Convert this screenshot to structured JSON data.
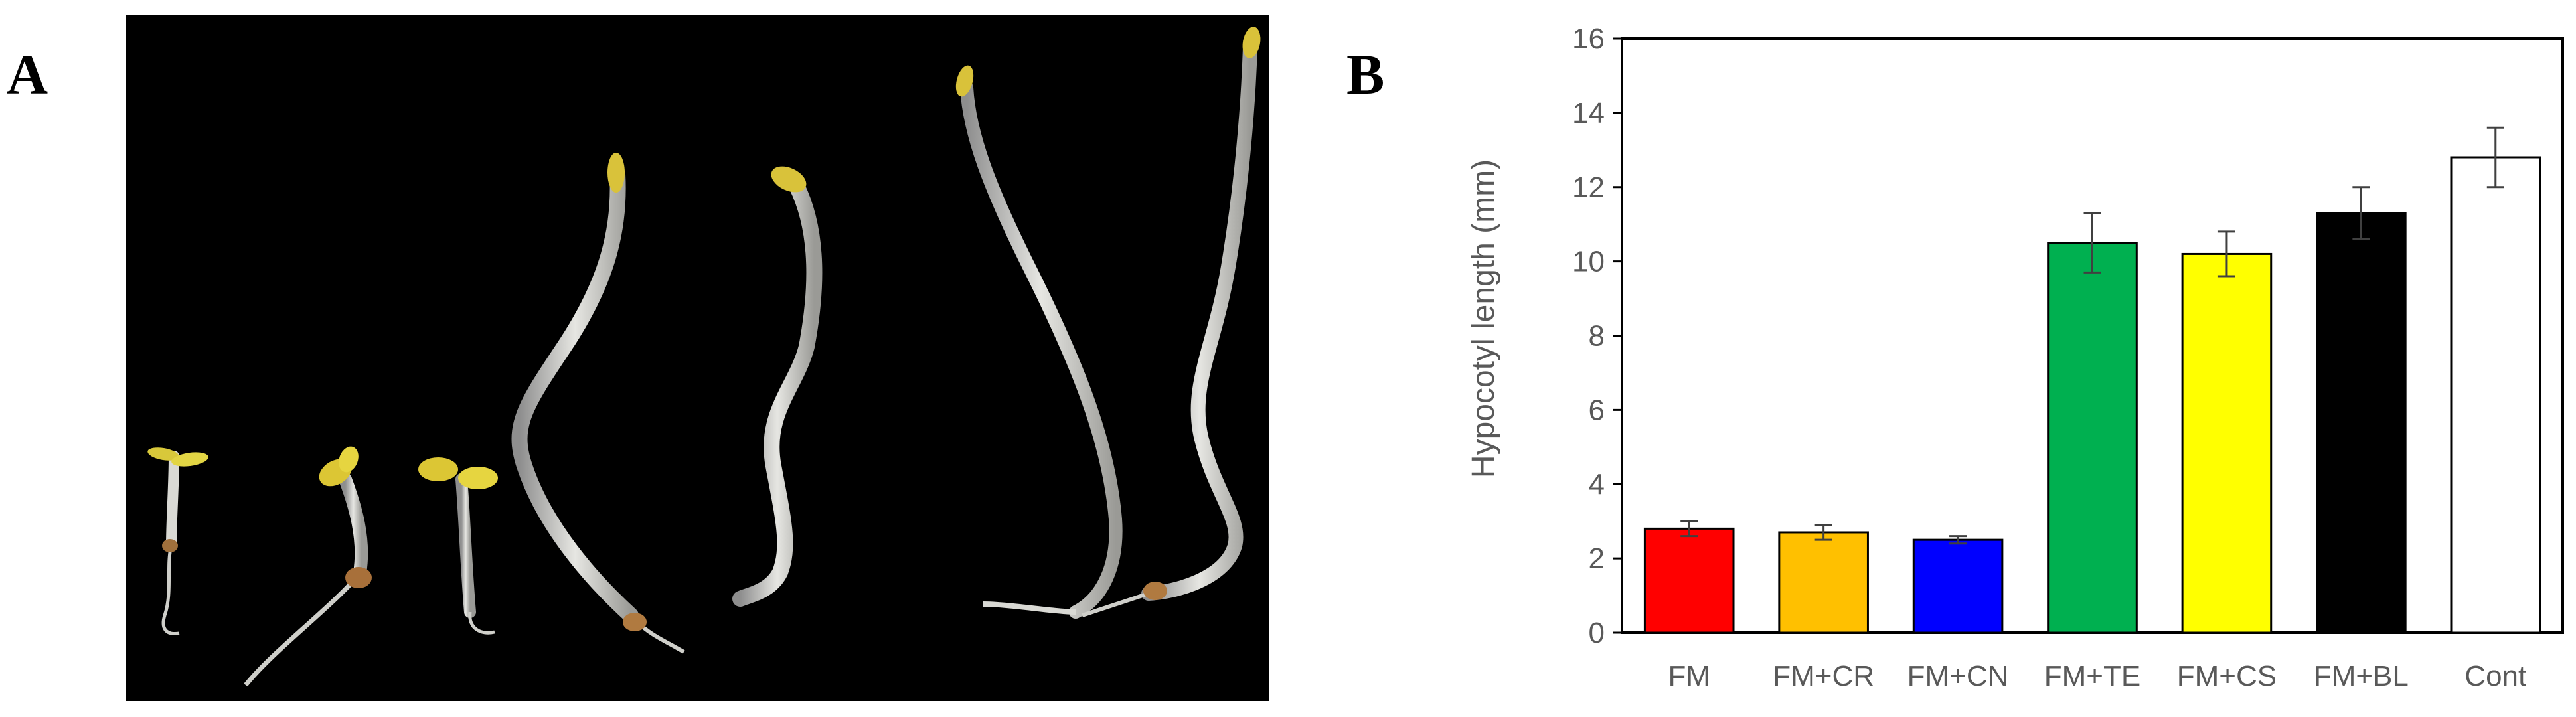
{
  "figure": {
    "panel_a_label": "A",
    "panel_b_label": "B"
  },
  "photo": {
    "background": "#000000",
    "seedlings": [
      {
        "type": "seedling",
        "cotyledon_color": "#d8c83a"
      },
      {
        "type": "seedling",
        "cotyledon_color": "#d8c83a"
      },
      {
        "type": "seedling",
        "cotyledon_color": "#d8c83a"
      },
      {
        "type": "seedling",
        "cotyledon_color": "#d8c83a"
      },
      {
        "type": "seedling",
        "cotyledon_color": "#d8c83a"
      },
      {
        "type": "seedling",
        "cotyledon_color": "#d8c83a"
      },
      {
        "type": "seedling",
        "cotyledon_color": "#d8c83a"
      }
    ]
  },
  "chart_data": {
    "type": "bar",
    "categories": [
      "FM",
      "FM+CR",
      "FM+CN",
      "FM+TE",
      "FM+CS",
      "FM+BL",
      "Cont"
    ],
    "values": [
      2.8,
      2.7,
      2.5,
      10.5,
      10.2,
      11.3,
      12.8
    ],
    "errors": [
      0.2,
      0.2,
      0.1,
      0.8,
      0.6,
      0.7,
      0.8
    ],
    "colors": [
      "#ff0000",
      "#ffc000",
      "#0000ff",
      "#00b050",
      "#ffff00",
      "#000000",
      "#ffffff"
    ],
    "ylabel": "Hypocotyl length (mm)",
    "xlabel": "",
    "title": "",
    "ylim": [
      0,
      16
    ],
    "yticks": [
      "0",
      "2",
      "4",
      "6",
      "8",
      "10",
      "12",
      "14",
      "16"
    ],
    "grid": false
  }
}
